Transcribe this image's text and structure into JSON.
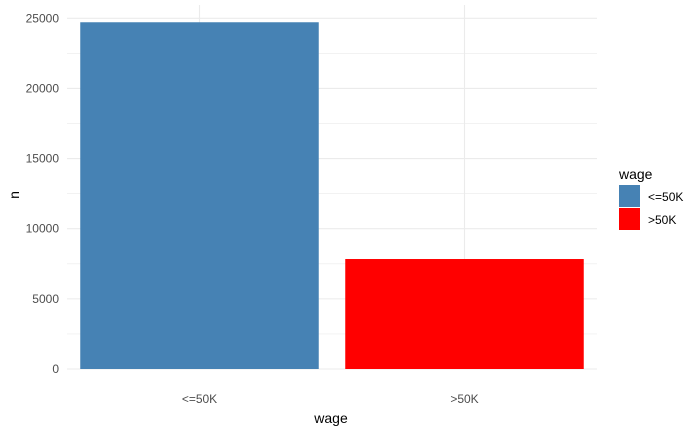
{
  "chart_data": {
    "type": "bar",
    "categories": [
      "<=50K",
      ">50K"
    ],
    "values": [
      24720,
      7841
    ],
    "colors": [
      "#4682B4",
      "#FF0000"
    ],
    "xlabel": "wage",
    "ylabel": "n",
    "ylim": [
      0,
      25950
    ],
    "yticks": [
      0,
      5000,
      10000,
      15000,
      20000,
      25000
    ],
    "ytick_labels": [
      "0",
      "5000",
      "10000",
      "15000",
      "20000",
      "25000"
    ],
    "grid": true,
    "legend": {
      "title": "wage",
      "position": "right",
      "entries": [
        "<=50K",
        ">50K"
      ]
    }
  }
}
